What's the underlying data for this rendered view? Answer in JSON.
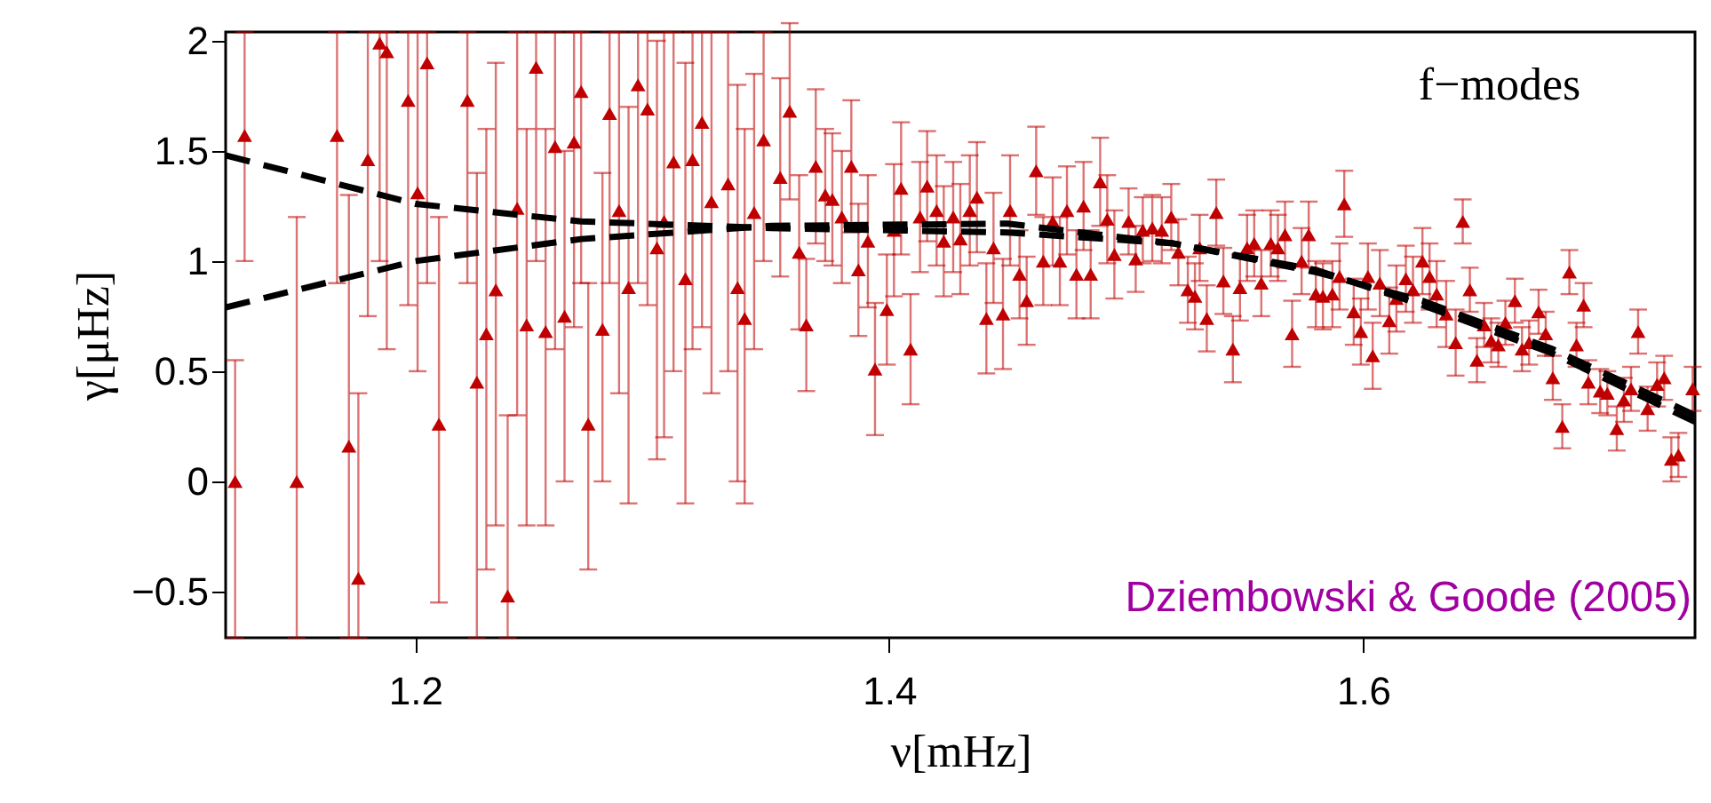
{
  "chart_data": {
    "type": "scatter",
    "xlabel": "ν[mHz]",
    "ylabel": "γ[μHz]",
    "xlim": [
      1.12,
      1.74
    ],
    "xticks": [
      1.2,
      1.4,
      1.6
    ],
    "ylim": [
      -0.71,
      2.04
    ],
    "yticks": [
      -0.5,
      0,
      0.5,
      1,
      1.5,
      2
    ],
    "grid": false,
    "marker": "triangle",
    "annotations": [
      "f−modes",
      "Dziembowski & Goode (2005)"
    ],
    "series": [
      {
        "color": "#c00000",
        "x": [
          1.124,
          1.128,
          1.15,
          1.167,
          1.172,
          1.176,
          1.18,
          1.185,
          1.188,
          1.197,
          1.201,
          1.205,
          1.21,
          1.222,
          1.226,
          1.23,
          1.234,
          1.239,
          1.243,
          1.247,
          1.251,
          1.255,
          1.259,
          1.263,
          1.267,
          1.27,
          1.273,
          1.279,
          1.282,
          1.286,
          1.29,
          1.294,
          1.298,
          1.302,
          1.305,
          1.309,
          1.314,
          1.317,
          1.321,
          1.325,
          1.332,
          1.336,
          1.339,
          1.343,
          1.347,
          1.354,
          1.358,
          1.362,
          1.365,
          1.369,
          1.373,
          1.376,
          1.38,
          1.384,
          1.387,
          1.391,
          1.394,
          1.399,
          1.402,
          1.405,
          1.409,
          1.413,
          1.416,
          1.42,
          1.423,
          1.427,
          1.43,
          1.434,
          1.437,
          1.441,
          1.444,
          1.448,
          1.451,
          1.455,
          1.458,
          1.462,
          1.465,
          1.469,
          1.472,
          1.475,
          1.479,
          1.482,
          1.485,
          1.489,
          1.492,
          1.495,
          1.501,
          1.504,
          1.507,
          1.511,
          1.515,
          1.519,
          1.522,
          1.526,
          1.529,
          1.531,
          1.534,
          1.538,
          1.541,
          1.545,
          1.548,
          1.551,
          1.554,
          1.557,
          1.561,
          1.564,
          1.567,
          1.57,
          1.574,
          1.577,
          1.58,
          1.583,
          1.587,
          1.59,
          1.592,
          1.596,
          1.599,
          1.602,
          1.604,
          1.607,
          1.611,
          1.614,
          1.618,
          1.621,
          1.625,
          1.628,
          1.631,
          1.635,
          1.639,
          1.642,
          1.645,
          1.648,
          1.651,
          1.654,
          1.657,
          1.66,
          1.664,
          1.667,
          1.67,
          1.674,
          1.677,
          1.68,
          1.684,
          1.687,
          1.69,
          1.693,
          1.695,
          1.7,
          1.703,
          1.707,
          1.71,
          1.713,
          1.716,
          1.72,
          1.724,
          1.727,
          1.73,
          1.733,
          1.739
        ],
        "values": [
          0.0,
          1.57,
          0.0,
          1.57,
          0.16,
          -0.44,
          1.46,
          1.99,
          1.95,
          1.73,
          1.31,
          1.9,
          0.26,
          1.73,
          0.45,
          0.67,
          0.87,
          -0.52,
          1.24,
          0.71,
          1.88,
          0.68,
          1.52,
          0.75,
          1.54,
          1.77,
          0.26,
          0.69,
          1.67,
          1.23,
          0.88,
          1.8,
          1.69,
          1.06,
          1.18,
          1.45,
          0.92,
          1.46,
          1.63,
          1.27,
          1.35,
          0.88,
          0.74,
          1.22,
          1.55,
          1.38,
          1.68,
          1.04,
          0.71,
          1.43,
          1.3,
          1.28,
          1.2,
          1.43,
          0.96,
          1.09,
          0.51,
          0.78,
          1.14,
          1.33,
          0.6,
          1.2,
          1.34,
          1.23,
          1.09,
          1.2,
          1.1,
          1.23,
          1.29,
          0.74,
          1.06,
          0.76,
          1.23,
          0.94,
          0.82,
          1.41,
          1.0,
          1.18,
          1.0,
          1.23,
          0.94,
          1.25,
          0.94,
          1.36,
          1.19,
          1.03,
          1.18,
          1.01,
          1.14,
          1.15,
          1.14,
          1.2,
          1.04,
          0.87,
          0.84,
          1.06,
          0.74,
          1.22,
          0.91,
          0.6,
          0.88,
          1.06,
          1.08,
          0.9,
          1.08,
          1.06,
          1.12,
          0.67,
          1.0,
          1.12,
          0.85,
          0.84,
          0.85,
          0.93,
          1.26,
          0.77,
          0.68,
          0.93,
          0.57,
          0.9,
          0.73,
          0.83,
          0.92,
          0.87,
          1.0,
          0.93,
          0.85,
          0.76,
          0.63,
          1.18,
          0.87,
          0.55,
          0.71,
          0.64,
          0.62,
          0.72,
          0.82,
          0.6,
          0.63,
          0.77,
          0.67,
          0.47,
          0.25,
          0.95,
          0.62,
          0.8,
          0.45,
          0.41,
          0.4,
          0.24,
          0.37,
          0.42,
          0.68,
          0.33,
          0.44,
          0.47,
          0.1,
          0.12,
          0.42
        ],
        "errors": [
          [
            -0.71,
            0.55
          ],
          [
            1.0,
            2.04
          ],
          [
            -0.71,
            1.2
          ],
          [
            0.9,
            2.04
          ],
          [
            -0.71,
            1.3
          ],
          [
            -0.71,
            0.4
          ],
          [
            0.75,
            2.04
          ],
          [
            1.0,
            2.04
          ],
          [
            0.6,
            2.04
          ],
          [
            0.8,
            2.04
          ],
          [
            0.5,
            2.04
          ],
          [
            0.9,
            2.04
          ],
          [
            -0.55,
            1.2
          ],
          [
            0.9,
            2.04
          ],
          [
            -0.71,
            1.4
          ],
          [
            -0.4,
            1.6
          ],
          [
            -0.2,
            1.9
          ],
          [
            -0.71,
            0.3
          ],
          [
            0.3,
            2.04
          ],
          [
            -0.2,
            1.6
          ],
          [
            1.0,
            2.04
          ],
          [
            -0.2,
            1.6
          ],
          [
            0.6,
            2.04
          ],
          [
            0.0,
            1.5
          ],
          [
            0.7,
            2.04
          ],
          [
            0.9,
            2.04
          ],
          [
            -0.4,
            0.9
          ],
          [
            0.0,
            1.4
          ],
          [
            0.9,
            2.04
          ],
          [
            0.4,
            2.04
          ],
          [
            -0.1,
            1.7
          ],
          [
            0.9,
            2.04
          ],
          [
            0.8,
            2.04
          ],
          [
            0.1,
            2.0
          ],
          [
            0.2,
            2.04
          ],
          [
            0.5,
            2.04
          ],
          [
            -0.1,
            1.9
          ],
          [
            0.6,
            2.04
          ],
          [
            0.7,
            2.04
          ],
          [
            0.4,
            2.04
          ],
          [
            0.5,
            2.04
          ],
          [
            0.0,
            1.8
          ],
          [
            -0.1,
            1.6
          ],
          [
            0.6,
            1.85
          ],
          [
            1.0,
            2.04
          ],
          0.45,
          0.4,
          0.35,
          0.3,
          0.35,
          0.3,
          0.3,
          0.3,
          0.3,
          0.3,
          0.3,
          0.3,
          0.25,
          0.3,
          0.3,
          0.25,
          0.25,
          0.25,
          0.25,
          0.25,
          0.25,
          0.25,
          0.25,
          0.25,
          0.25,
          0.25,
          0.25,
          0.25,
          0.2,
          0.2,
          0.2,
          0.2,
          0.2,
          0.2,
          0.2,
          0.2,
          0.2,
          0.2,
          0.2,
          0.2,
          0.2,
          0.15,
          0.15,
          0.15,
          0.15,
          0.15,
          0.15,
          0.15,
          0.15,
          0.15,
          0.15,
          0.15,
          0.15,
          0.15,
          0.15,
          0.15,
          0.15,
          0.15,
          0.15,
          0.15,
          0.15,
          0.15,
          0.15,
          0.15,
          0.15,
          0.15,
          0.15,
          0.15,
          0.15,
          0.15,
          0.15,
          0.15,
          0.15,
          0.15,
          0.15,
          0.15,
          0.15,
          0.15,
          0.15,
          0.15,
          0.15,
          0.15,
          0.15,
          0.15,
          0.1,
          0.1,
          0.1,
          0.1,
          0.1,
          0.1,
          0.1,
          0.1,
          0.1,
          0.1,
          0.1,
          0.1,
          0.1,
          0.1,
          0.1,
          0.1,
          0.1,
          0.1,
          0.1,
          0.1,
          0.1,
          0.1,
          0.1,
          0.1,
          0.1,
          0.1,
          0.1,
          0.1,
          0.1,
          0.1
        ]
      },
      {
        "type": "line",
        "color": "#000000",
        "line_style": "dashed",
        "marker": "none",
        "x": [
          1.12,
          1.2,
          1.27,
          1.35,
          1.45,
          1.52,
          1.58,
          1.625,
          1.68,
          1.74
        ],
        "values": [
          1.48,
          1.26,
          1.18,
          1.15,
          1.13,
          1.08,
          0.96,
          0.8,
          0.58,
          0.27
        ]
      },
      {
        "type": "line",
        "color": "#000000",
        "line_style": "dashed",
        "marker": "none",
        "x": [
          1.12,
          1.2,
          1.27,
          1.35,
          1.45,
          1.52,
          1.58,
          1.625,
          1.68,
          1.74
        ],
        "values": [
          0.79,
          1.0,
          1.1,
          1.16,
          1.17,
          1.08,
          0.95,
          0.82,
          0.6,
          0.3
        ]
      }
    ]
  }
}
